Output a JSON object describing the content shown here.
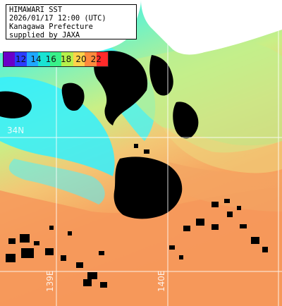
{
  "header": {
    "line1": "HIMAWARI SST",
    "line2": "2026/01/17 12:00 (UTC)",
    "line3": "Kanagawa Prefecture",
    "line4": "supplied by JAXA"
  },
  "legend": {
    "labels": [
      "12",
      "14",
      "16",
      "18",
      "20",
      "22"
    ],
    "colors": [
      "#6a00c8",
      "#2b3cff",
      "#1fa8ff",
      "#19e3d3",
      "#39f28a",
      "#b6f04b",
      "#ffd24a",
      "#ff8a3c",
      "#ff2a2a"
    ]
  },
  "grid": {
    "lat_label": "34N",
    "lon_labels": [
      "139E",
      "140E"
    ]
  },
  "colors": {
    "land": "#000000",
    "warm_sea": "#f7a05d",
    "mid_sea": "#c6f08e",
    "cool_sea": "#39f5ff",
    "cloud": "#ffffff",
    "grid_line": "#ffffff"
  }
}
